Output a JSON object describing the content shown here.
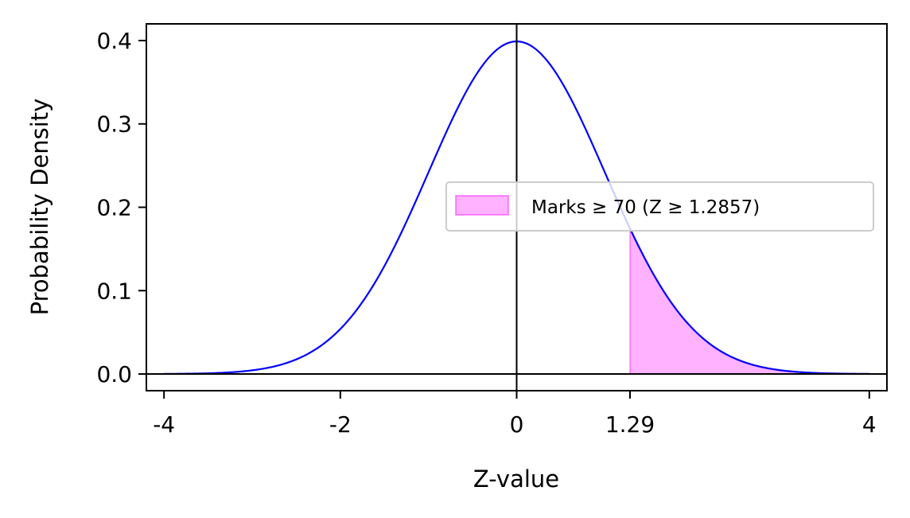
{
  "chart_data": {
    "type": "line",
    "title": "",
    "xlabel": "Z-value",
    "ylabel": "Probability Density",
    "xlim": [
      -4.2,
      4.2
    ],
    "ylim": [
      -0.02,
      0.42
    ],
    "x_ticks": [
      {
        "value": -4,
        "label": "-4"
      },
      {
        "value": -2,
        "label": "-2"
      },
      {
        "value": 0,
        "label": "0"
      },
      {
        "value": 1.2857,
        "label": "1.29"
      },
      {
        "value": 4,
        "label": "4"
      }
    ],
    "y_ticks": [
      {
        "value": 0.0,
        "label": "0.0"
      },
      {
        "value": 0.1,
        "label": "0.1"
      },
      {
        "value": 0.2,
        "label": "0.2"
      },
      {
        "value": 0.3,
        "label": "0.3"
      },
      {
        "value": 0.4,
        "label": "0.4"
      }
    ],
    "series": [
      {
        "kind": "line",
        "color": "#0000ff",
        "x": [
          -4.0,
          -3.5,
          -3.0,
          -2.5,
          -2.0,
          -1.5,
          -1.0,
          -0.5,
          0.0,
          0.5,
          1.0,
          1.2857,
          1.5,
          2.0,
          2.5,
          3.0,
          3.5,
          4.0
        ],
        "y": [
          0.0001,
          0.0009,
          0.0044,
          0.0175,
          0.054,
          0.1295,
          0.242,
          0.3521,
          0.3989,
          0.3521,
          0.242,
          0.1742,
          0.1295,
          0.054,
          0.0175,
          0.0044,
          0.0009,
          0.0001
        ]
      },
      {
        "kind": "area",
        "name": "Marks ≥ 70 (Z ≥ 1.2857)",
        "color": "#ff00ff",
        "opacity": 0.3,
        "x": [
          1.2857,
          1.5,
          2.0,
          2.5,
          3.0,
          3.5,
          4.0
        ],
        "y": [
          0.1742,
          0.1295,
          0.054,
          0.0175,
          0.0044,
          0.0009,
          0.0001
        ]
      }
    ],
    "reference_lines": {
      "vertical": [
        0
      ],
      "horizontal": [
        0
      ]
    },
    "grid": false,
    "legend": {
      "placement": "center-right"
    }
  }
}
